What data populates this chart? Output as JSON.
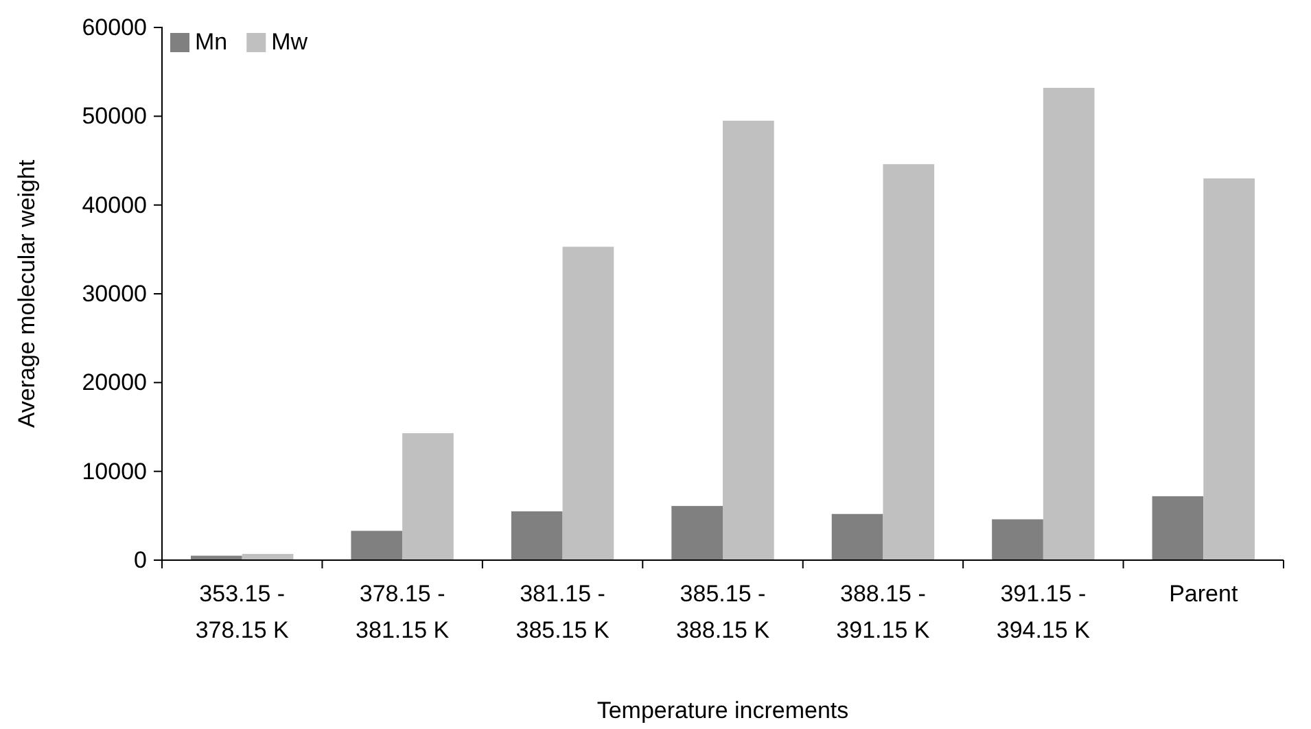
{
  "chart_data": {
    "type": "bar",
    "xlabel": "Temperature increments",
    "ylabel": "Average molecular weight",
    "categories": [
      "353.15 - 378.15 K",
      "378.15 - 381.15 K",
      "381.15 - 385.15 K",
      "385.15 - 388.15 K",
      "388.15 - 391.15 K",
      "391.15 - 394.15 K",
      "Parent"
    ],
    "series": [
      {
        "name": "Mn",
        "color": "#808080",
        "values": [
          500,
          3300,
          5500,
          6100,
          5200,
          4600,
          7200
        ]
      },
      {
        "name": "Mw",
        "color": "#c0c0c0",
        "values": [
          700,
          14300,
          35300,
          49500,
          44600,
          53200,
          43000
        ]
      }
    ],
    "ylim": [
      0,
      60000
    ],
    "yticks": [
      0,
      10000,
      20000,
      30000,
      40000,
      50000,
      60000
    ],
    "legend": "top left"
  }
}
